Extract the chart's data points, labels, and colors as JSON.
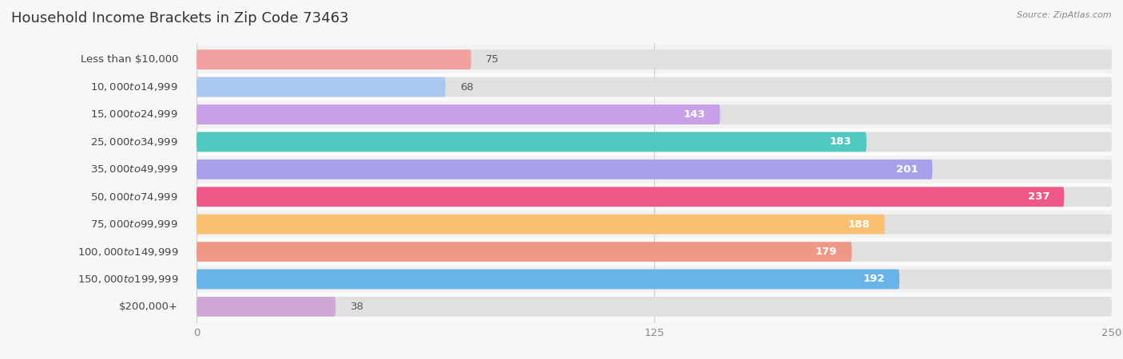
{
  "title": "Household Income Brackets in Zip Code 73463",
  "source": "Source: ZipAtlas.com",
  "categories": [
    "Less than $10,000",
    "$10,000 to $14,999",
    "$15,000 to $24,999",
    "$25,000 to $34,999",
    "$35,000 to $49,999",
    "$50,000 to $74,999",
    "$75,000 to $99,999",
    "$100,000 to $149,999",
    "$150,000 to $199,999",
    "$200,000+"
  ],
  "values": [
    75,
    68,
    143,
    183,
    201,
    237,
    188,
    179,
    192,
    38
  ],
  "bar_colors": [
    "#F2A0A0",
    "#A8C8F0",
    "#C8A0E8",
    "#50C8C0",
    "#A8A0E8",
    "#F05888",
    "#F8C070",
    "#F09888",
    "#68B4E8",
    "#D0A8D8"
  ],
  "xlim_max": 250,
  "xticks": [
    0,
    125,
    250
  ],
  "background_color": "#f7f7f7",
  "bar_bg_color": "#e8e8e8",
  "row_bg_colors": [
    "#f0f0f0",
    "#fafafa"
  ],
  "title_fontsize": 13,
  "label_fontsize": 9.5,
  "value_fontsize": 9.5,
  "source_fontsize": 8
}
